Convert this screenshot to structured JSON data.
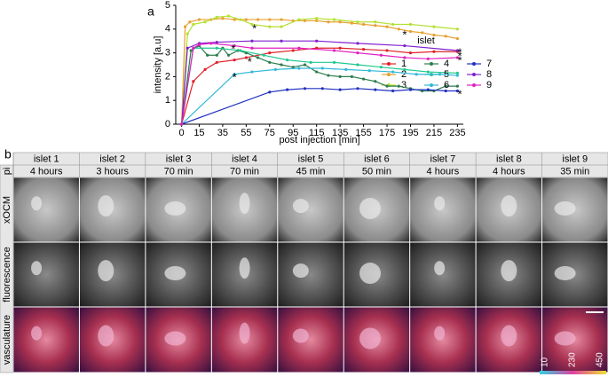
{
  "panel_a_label": "a",
  "chart_data": {
    "type": "line",
    "xlabel": "post injection [min]",
    "ylabel": "intensity [a.u]",
    "xlim": [
      -5,
      240
    ],
    "xticks": [
      0,
      15,
      35,
      55,
      75,
      95,
      115,
      135,
      155,
      175,
      195,
      215,
      235
    ],
    "ylim": [
      0,
      5
    ],
    "yticks": [
      0,
      1,
      2,
      3,
      4,
      5
    ],
    "legend_title": "islet",
    "legend": "right",
    "series": [
      {
        "name": "1",
        "color": "#e0202a",
        "x": [
          0,
          10,
          20,
          30,
          45,
          55,
          75,
          95,
          115,
          135,
          155,
          175,
          195,
          215,
          235
        ],
        "values": [
          0,
          1.8,
          2.3,
          2.6,
          2.7,
          2.8,
          3.0,
          3.1,
          3.2,
          3.2,
          3.15,
          3.1,
          3.0,
          3.05,
          3.05
        ]
      },
      {
        "name": "2",
        "color": "#e8a030",
        "x": [
          0,
          3,
          7,
          15,
          25,
          35,
          45,
          55,
          65,
          75,
          85,
          95,
          105,
          115,
          125,
          135,
          145,
          155,
          165,
          175,
          185,
          195,
          205,
          215,
          225,
          235
        ],
        "values": [
          0,
          4.1,
          4.3,
          4.4,
          4.4,
          4.45,
          4.4,
          4.4,
          4.4,
          4.4,
          4.4,
          4.35,
          4.35,
          4.35,
          4.3,
          4.3,
          4.25,
          4.2,
          4.15,
          4.1,
          4.0,
          3.9,
          3.85,
          3.75,
          3.7,
          3.6
        ]
      },
      {
        "name": "3",
        "color": "#b4e030",
        "x": [
          0,
          5,
          10,
          20,
          30,
          40,
          50,
          60,
          75,
          85,
          100,
          115,
          130,
          150,
          165,
          180,
          195,
          215,
          235
        ],
        "values": [
          0,
          3.8,
          4.2,
          4.3,
          4.5,
          4.55,
          4.4,
          4.2,
          4.1,
          4.1,
          4.4,
          4.45,
          4.4,
          4.3,
          4.3,
          4.2,
          4.2,
          4.1,
          4.0
        ]
      },
      {
        "name": "4",
        "color": "#2e7d4f",
        "x": [
          0,
          8,
          15,
          22,
          30,
          35,
          40,
          48,
          55,
          65,
          75,
          85,
          95,
          105,
          115,
          125,
          135,
          145,
          155,
          165,
          175,
          185,
          195,
          205,
          215,
          225,
          235
        ],
        "values": [
          0,
          3.1,
          3.3,
          2.9,
          2.9,
          3.2,
          2.9,
          3.1,
          3.0,
          2.8,
          2.6,
          2.5,
          2.4,
          2.5,
          2.2,
          2.05,
          2.0,
          2.0,
          1.9,
          1.8,
          1.6,
          1.6,
          1.5,
          1.4,
          1.4,
          1.6,
          1.6
        ]
      },
      {
        "name": "5",
        "color": "#20c890",
        "x": [
          0,
          10,
          30,
          50,
          70,
          90,
          110,
          130,
          150,
          170,
          190,
          210,
          235
        ],
        "values": [
          0,
          3.2,
          3.2,
          3.1,
          2.9,
          2.7,
          2.6,
          2.6,
          2.5,
          2.4,
          2.3,
          2.2,
          2.15
        ]
      },
      {
        "name": "6",
        "color": "#30b8d8",
        "x": [
          0,
          45,
          60,
          80,
          100,
          120,
          140,
          160,
          180,
          200,
          220,
          235
        ],
        "values": [
          0,
          2.1,
          2.2,
          2.3,
          2.35,
          2.35,
          2.3,
          2.25,
          2.2,
          2.1,
          2.1,
          2.05
        ]
      },
      {
        "name": "7",
        "color": "#2030c0",
        "x": [
          0,
          75,
          90,
          105,
          120,
          135,
          150,
          165,
          180,
          195,
          210,
          225,
          235
        ],
        "values": [
          0,
          1.35,
          1.45,
          1.5,
          1.5,
          1.45,
          1.5,
          1.45,
          1.4,
          1.45,
          1.45,
          1.4,
          1.4
        ]
      },
      {
        "name": "8",
        "color": "#8020d0",
        "x": [
          0,
          5,
          15,
          30,
          60,
          85,
          115,
          150,
          190,
          235
        ],
        "values": [
          0,
          3.2,
          3.4,
          3.45,
          3.5,
          3.5,
          3.5,
          3.4,
          3.3,
          3.1
        ]
      },
      {
        "name": "9",
        "color": "#e020c0",
        "x": [
          0,
          10,
          15,
          25,
          45,
          60,
          100,
          130,
          150,
          170,
          190,
          210,
          235
        ],
        "values": [
          0,
          3.2,
          3.35,
          3.4,
          3.3,
          3.2,
          3.2,
          3.1,
          3.0,
          2.9,
          2.8,
          2.75,
          2.8
        ]
      }
    ],
    "annotations": [
      {
        "text": "*",
        "x": 62,
        "y": 4.1
      },
      {
        "text": "*",
        "x": 190,
        "y": 3.85
      },
      {
        "text": "*",
        "x": 44,
        "y": 3.25
      },
      {
        "text": "*",
        "x": 58,
        "y": 2.7
      },
      {
        "text": "*",
        "x": 45,
        "y": 2.05
      },
      {
        "text": "*",
        "x": 237,
        "y": 3.1
      },
      {
        "text": "*",
        "x": 237,
        "y": 2.95
      },
      {
        "text": "*",
        "x": 237,
        "y": 2.75
      },
      {
        "text": "*",
        "x": 237,
        "y": 1.35
      }
    ]
  },
  "panel_b": {
    "label": "b",
    "row_labels": [
      "pi",
      "xOCM",
      "fluorescence",
      "vasculature"
    ],
    "columns": [
      {
        "islet": "islet 1",
        "time": "4 hours"
      },
      {
        "islet": "islet 2",
        "time": "3 hours"
      },
      {
        "islet": "islet 3",
        "time": "70 min"
      },
      {
        "islet": "islet 4",
        "time": "70 min"
      },
      {
        "islet": "islet 5",
        "time": "45 min"
      },
      {
        "islet": "islet 6",
        "time": "50 min"
      },
      {
        "islet": "islet 7",
        "time": "4 hours"
      },
      {
        "islet": "islet 8",
        "time": "4 hours"
      },
      {
        "islet": "islet 9",
        "time": "35 min"
      }
    ],
    "colorbar_labels": [
      "10",
      "230",
      "450"
    ]
  }
}
